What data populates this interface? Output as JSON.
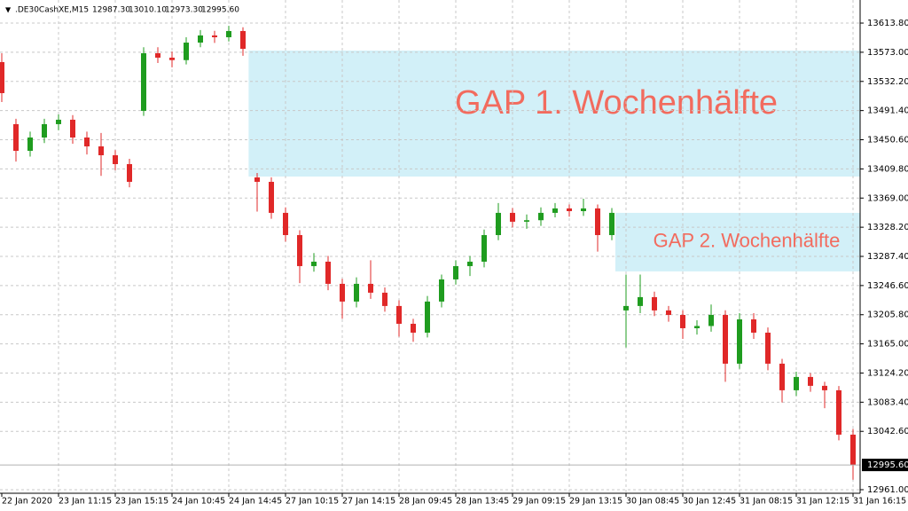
{
  "chart_data": {
    "type": "candlestick",
    "title": ".DE30CashXE,M15",
    "header_values": [
      "12987.30",
      "13010.10",
      "12973.30",
      "12995.60"
    ],
    "up_color": "#1f9c1f",
    "down_color": "#e02828",
    "grid": true,
    "xlim": [
      -0.125,
      60.5
    ],
    "xticks": [
      {
        "value": 0,
        "label": "22 Jan 2020"
      },
      {
        "value": 4,
        "label": "23 Jan 11:15"
      },
      {
        "value": 8,
        "label": "23 Jan 15:15"
      },
      {
        "value": 12,
        "label": "24 Jan 10:45"
      },
      {
        "value": 16,
        "label": "24 Jan 14:45"
      },
      {
        "value": 20,
        "label": "27 Jan 10:15"
      },
      {
        "value": 24,
        "label": "27 Jan 14:15"
      },
      {
        "value": 28,
        "label": "28 Jan 09:45"
      },
      {
        "value": 32,
        "label": "28 Jan 13:45"
      },
      {
        "value": 36,
        "label": "29 Jan 09:15"
      },
      {
        "value": 40,
        "label": "29 Jan 13:15"
      },
      {
        "value": 44,
        "label": "30 Jan 08:45"
      },
      {
        "value": 48,
        "label": "30 Jan 12:45"
      },
      {
        "value": 52,
        "label": "31 Jan 08:15"
      },
      {
        "value": 56,
        "label": "31 Jan 12:15"
      },
      {
        "value": 60,
        "label": "31 Jan 16:15"
      }
    ],
    "ylim": [
      12956.0,
      13646.1
    ],
    "yticks": [
      {
        "value": 13613.8,
        "label": "13613.80"
      },
      {
        "value": 13573,
        "label": "13573.00"
      },
      {
        "value": 13532.2,
        "label": "13532.20"
      },
      {
        "value": 13491.4,
        "label": "13491.40"
      },
      {
        "value": 13450.6,
        "label": "13450.60"
      },
      {
        "value": 13409.8,
        "label": "13409.80"
      },
      {
        "value": 13369,
        "label": "13369.00"
      },
      {
        "value": 13328.2,
        "label": "13328.20"
      },
      {
        "value": 13287.4,
        "label": "13287.40"
      },
      {
        "value": 13246.6,
        "label": "13246.60"
      },
      {
        "value": 13205.8,
        "label": "13205.80"
      },
      {
        "value": 13165,
        "label": "13165.00"
      },
      {
        "value": 13124.2,
        "label": "13124.20"
      },
      {
        "value": 13083.4,
        "label": "13083.40"
      },
      {
        "value": 13042.6,
        "label": "13042.60"
      },
      {
        "value": 12961,
        "label": "12961.00"
      }
    ],
    "last_price": {
      "value": 12995.6,
      "label": "12995.60"
    },
    "open": [
      13559.2,
      13472.4,
      13435.1,
      13453.7,
      13472.4,
      13478.6,
      13453.7,
      13441.3,
      13428.9,
      13416.5,
      13491.0,
      13571.6,
      13565.4,
      13562.0,
      13586.5,
      13596.5,
      13594.0,
      13602.7,
      13397.9,
      13391.7,
      13348.3,
      13317.2,
      13273.8,
      13280.0,
      13249.0,
      13224.2,
      13249.0,
      13236.6,
      13218.0,
      13193.1,
      13180.7,
      13224.2,
      13255.2,
      13273.8,
      13280.0,
      13317.2,
      13348.3,
      13335.9,
      13338.0,
      13348.3,
      13354.5,
      13350.7,
      13354.5,
      13317.2,
      13211.8,
      13218.0,
      13230.4,
      13211.8,
      13205.5,
      13186.9,
      13190.0,
      13205.5,
      13137.3,
      13199.3,
      13180.7,
      13137.3,
      13100.1,
      13118.7,
      13106.3,
      13100.1,
      13038.0
    ],
    "high": [
      13571.6,
      13480,
      13462,
      13480,
      13486,
      13485,
      13462,
      13460,
      13436,
      13424,
      13580,
      13580,
      13574,
      13594,
      13604,
      13603,
      13610,
      13608,
      13404,
      13398,
      13356,
      13324,
      13292,
      13288,
      13256,
      13258,
      13282,
      13244,
      13226,
      13200,
      13232,
      13262,
      13282,
      13288,
      13325,
      13362,
      13355,
      13346,
      13356,
      13362,
      13360,
      13368,
      13360,
      13355,
      13262,
      13262,
      13238,
      13218,
      13212,
      13198,
      13220,
      13212,
      13208,
      13208,
      13188,
      13144,
      13126,
      13124,
      13112,
      13106,
      13046
    ],
    "low": [
      13503.4,
      13420,
      13427,
      13446,
      13464,
      13445,
      13430,
      13400,
      13408,
      13384,
      13484,
      13558,
      13552,
      13556,
      13580,
      13586,
      13588,
      13568,
      13350,
      13340,
      13308,
      13250,
      13266,
      13240,
      13200,
      13216,
      13228,
      13210,
      13175,
      13168,
      13174,
      13216,
      13248,
      13260,
      13272,
      13310,
      13328,
      13326,
      13330,
      13342,
      13343,
      13344,
      13294,
      13310,
      13160,
      13208,
      13204,
      13196,
      13172,
      13178,
      13182,
      13112,
      13130,
      13172,
      13128,
      13083,
      13092,
      13098,
      13075,
      13030,
      12975
    ],
    "close": [
      13515.8,
      13435.1,
      13453.7,
      13472.4,
      13478.6,
      13453.7,
      13441.3,
      13428.9,
      13416.5,
      13391.7,
      13571.6,
      13565.4,
      13562.0,
      13586.5,
      13596.5,
      13594.0,
      13602.7,
      13577.8,
      13391.7,
      13348.3,
      13317.2,
      13273.8,
      13280.0,
      13249.0,
      13224.2,
      13249.0,
      13236.6,
      13218.0,
      13193.1,
      13180.7,
      13224.2,
      13255.2,
      13273.8,
      13280.0,
      13317.2,
      13348.3,
      13335.9,
      13338.0,
      13348.3,
      13354.5,
      13350.7,
      13354.5,
      13317.2,
      13348.3,
      13218.0,
      13230.4,
      13211.8,
      13205.5,
      13186.9,
      13190.0,
      13205.5,
      13137.3,
      13199.3,
      13180.7,
      13137.3,
      13100.1,
      13118.7,
      13106.3,
      13100.1,
      13038.0,
      12995.6
    ],
    "annotations": [
      {
        "text": "GAP 1. Wochenhälfte",
        "x0": 17.4,
        "y0": 13399.1,
        "y1": 13575.4
      },
      {
        "text": "GAP 2. Wochenhälfte",
        "x0": 43.25,
        "y0": 13266.4,
        "y1": 13348.3
      }
    ]
  }
}
